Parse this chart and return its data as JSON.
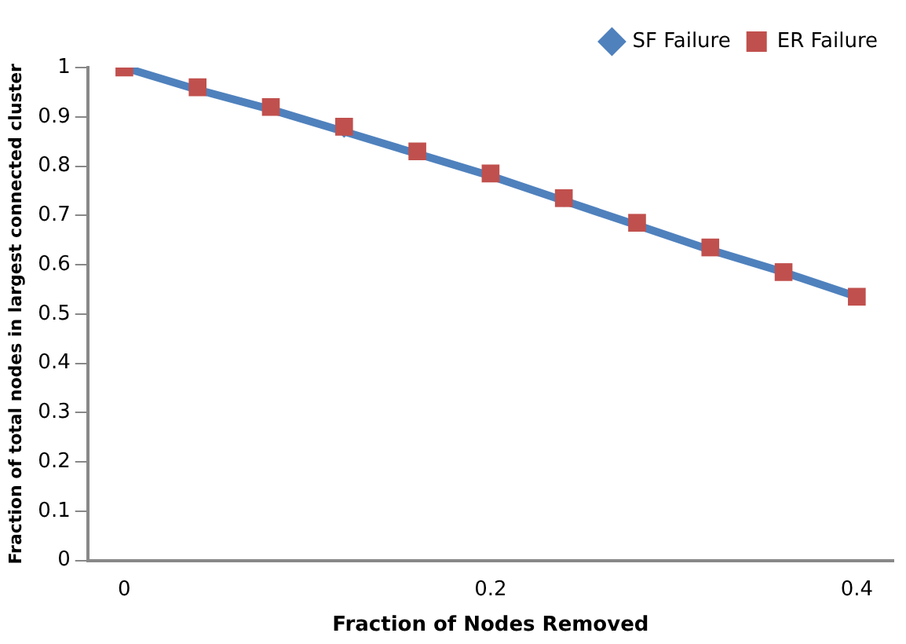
{
  "chart_data": {
    "type": "line",
    "xlabel": "Fraction of Nodes Removed",
    "ylabel": "Fraction of total nodes in largest connected cluster",
    "x": [
      0,
      0.04,
      0.08,
      0.12,
      0.16,
      0.2,
      0.24,
      0.28,
      0.32,
      0.36,
      0.4
    ],
    "xlim": [
      -0.02,
      0.42
    ],
    "xticks": [
      0,
      0.2,
      0.4
    ],
    "ylim": [
      0,
      1
    ],
    "yticks": [
      0,
      0.1,
      0.2,
      0.3,
      0.4,
      0.5,
      0.6,
      0.7,
      0.8,
      0.9,
      1
    ],
    "grid": false,
    "legend": "top right",
    "series": [
      {
        "name": "SF Failure",
        "marker": "diamond",
        "color": "#4f81bd",
        "values": [
          1.0,
          0.955,
          0.915,
          0.87,
          0.825,
          0.78,
          0.73,
          0.68,
          0.63,
          0.585,
          0.535
        ]
      },
      {
        "name": "ER Failure",
        "type": "scatter",
        "marker": "square",
        "color": "#c0504d",
        "values": [
          1.0,
          0.96,
          0.92,
          0.88,
          0.83,
          0.785,
          0.735,
          0.685,
          0.635,
          0.585,
          0.535
        ]
      }
    ]
  }
}
